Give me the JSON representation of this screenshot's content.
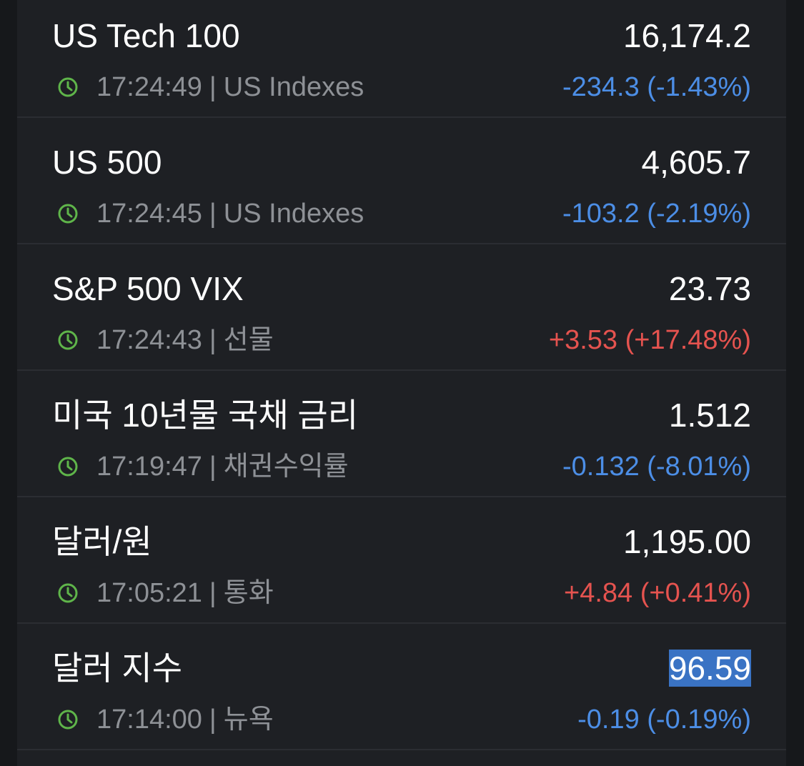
{
  "rows": [
    {
      "name": "US Tech 100",
      "price": "16,174.2",
      "time": "17:24:49",
      "category": "US Indexes",
      "change": "-234.3 (-1.43%)",
      "change_color": "#4c8ee6",
      "highlighted": false
    },
    {
      "name": "US 500",
      "price": "4,605.7",
      "time": "17:24:45",
      "category": "US Indexes",
      "change": "-103.2 (-2.19%)",
      "change_color": "#4c8ee6",
      "highlighted": false
    },
    {
      "name": "S&P 500 VIX",
      "price": "23.73",
      "time": "17:24:43",
      "category": "선물",
      "change": "+3.53 (+17.48%)",
      "change_color": "#e5534f",
      "highlighted": false
    },
    {
      "name": "미국 10년물 국채 금리",
      "price": "1.512",
      "time": "17:19:47",
      "category": "채권수익률",
      "change": "-0.132 (-8.01%)",
      "change_color": "#4c8ee6",
      "highlighted": false
    },
    {
      "name": "달러/원",
      "price": "1,195.00",
      "time": "17:05:21",
      "category": "통화",
      "change": "+4.84 (+0.41%)",
      "change_color": "#e5534f",
      "highlighted": false
    },
    {
      "name": "달러 지수",
      "price": "96.59",
      "time": "17:14:00",
      "category": "뉴욕",
      "change": "-0.19 (-0.19%)",
      "change_color": "#4c8ee6",
      "highlighted": true
    }
  ]
}
